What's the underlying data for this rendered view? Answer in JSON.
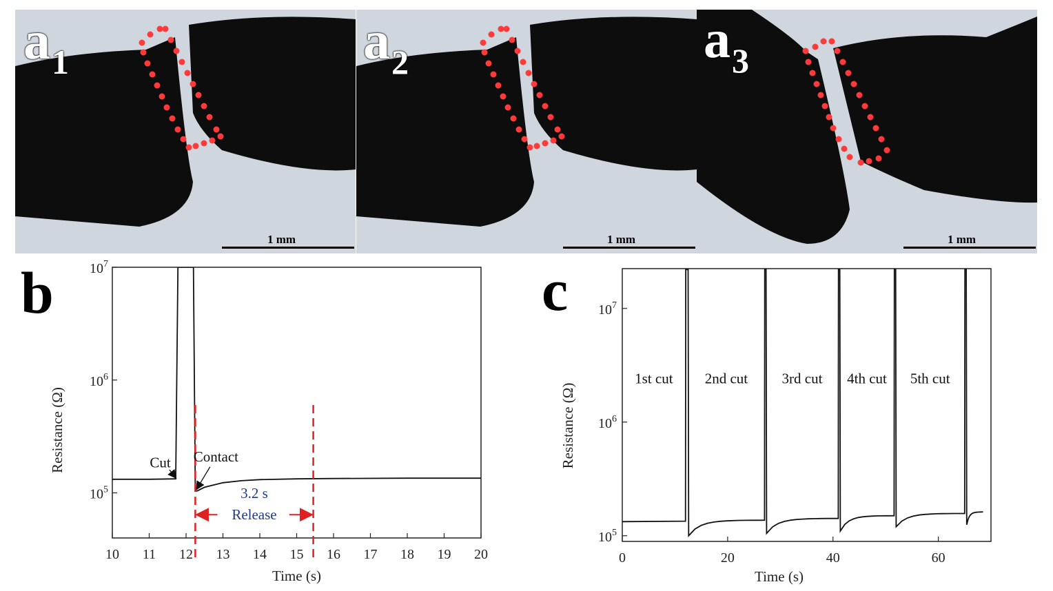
{
  "panels": {
    "a1": {
      "letter": "a",
      "sub": "1",
      "scale": "1 mm"
    },
    "a2": {
      "letter": "a",
      "sub": "2",
      "scale": "1 mm"
    },
    "a3": {
      "letter": "a",
      "sub": "3",
      "scale": "1 mm"
    },
    "b": {
      "letter": "b"
    },
    "c": {
      "letter": "c"
    }
  },
  "chart_data": [
    {
      "type": "line",
      "panel": "b",
      "xlabel": "Time (s)",
      "ylabel": "Resistance (Ω)",
      "xlim": [
        10,
        20
      ],
      "ylim_log10": [
        4.6,
        7
      ],
      "yscale": "log",
      "xticks": [
        10,
        11,
        12,
        13,
        14,
        15,
        16,
        17,
        18,
        19,
        20
      ],
      "yticks": [
        {
          "value": 100000,
          "base": "10",
          "exp": "5"
        },
        {
          "value": 1000000,
          "base": "10",
          "exp": "6"
        },
        {
          "value": 10000000,
          "base": "10",
          "exp": "7"
        }
      ],
      "series": [
        {
          "x": [
            10,
            11.0,
            11.7,
            11.72,
            11.78,
            11.8,
            12.18,
            12.2,
            12.25,
            12.3,
            12.5,
            13.0,
            13.5,
            14.0,
            15.0,
            16.0,
            18.0,
            20.0
          ],
          "y": [
            132000,
            132000,
            133000,
            133000,
            20000000,
            20000000,
            20000000,
            20000000,
            104000,
            104000,
            112000,
            123000,
            128000,
            131000,
            133000,
            134000,
            135000,
            135000
          ]
        }
      ],
      "annotations": {
        "cut": "Cut",
        "contact": "Contact",
        "duration": "3.2 s",
        "release": "Release"
      },
      "markers_x": [
        12.25,
        15.45
      ],
      "marker_color": "#e02020",
      "annotation_color": "#1f3a8a"
    },
    {
      "type": "line",
      "panel": "c",
      "xlabel": "Time (s)",
      "ylabel": "Resistance (Ω)",
      "xlim": [
        0,
        70
      ],
      "ylim_log10": [
        4.95,
        7.35
      ],
      "yscale": "log",
      "xticks": [
        0,
        20,
        40,
        60
      ],
      "yticks": [
        {
          "value": 100000,
          "base": "10",
          "exp": "5"
        },
        {
          "value": 1000000,
          "base": "10",
          "exp": "6"
        },
        {
          "value": 10000000,
          "base": "10",
          "exp": "7"
        }
      ],
      "cuts": [
        {
          "label": "1st cut",
          "start": 0,
          "end": 12.0,
          "base": 133000,
          "dip": null
        },
        {
          "label": "2nd cut",
          "start": 12.5,
          "end": 27.0,
          "base": 137000,
          "dip": 100000
        },
        {
          "label": "3rd cut",
          "start": 27.3,
          "end": 41.0,
          "base": 142000,
          "dip": 105000
        },
        {
          "label": "4th cut",
          "start": 41.3,
          "end": 51.6,
          "base": 150000,
          "dip": 110000
        },
        {
          "label": "5th cut",
          "start": 51.9,
          "end": 65.0,
          "base": 157000,
          "dip": 120000
        },
        {
          "label": "",
          "start": 65.3,
          "end": 68.5,
          "base": 162000,
          "dip": 125000
        }
      ],
      "spike_value": 22000000
    }
  ]
}
